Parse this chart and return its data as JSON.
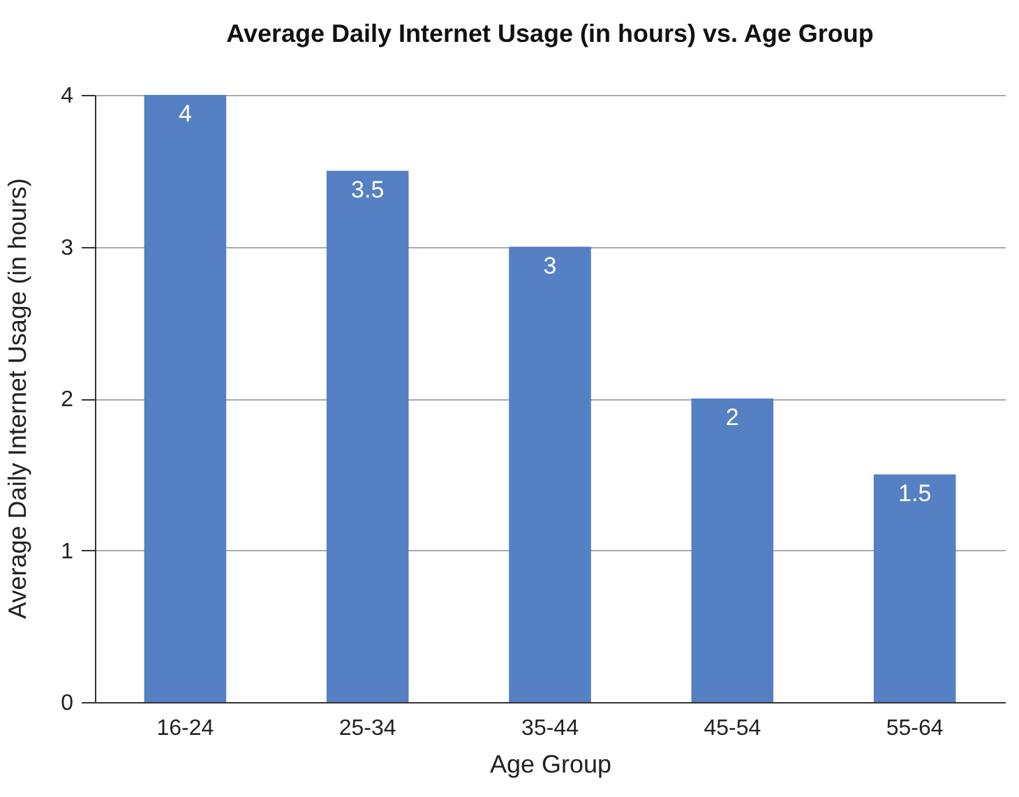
{
  "chart_data": {
    "type": "bar",
    "title": "Average Daily Internet Usage (in hours) vs. Age Group",
    "xlabel": "Age Group",
    "ylabel": "Average Daily Internet Usage (in hours)",
    "categories": [
      "16-24",
      "25-34",
      "35-44",
      "45-54",
      "55-64"
    ],
    "values": [
      4,
      3.5,
      3,
      2,
      1.5
    ],
    "color": "#5580c4",
    "ylim": [
      0,
      4
    ],
    "yticks": [
      0,
      1,
      2,
      3,
      4
    ],
    "grid": "y",
    "data_labels": true
  }
}
